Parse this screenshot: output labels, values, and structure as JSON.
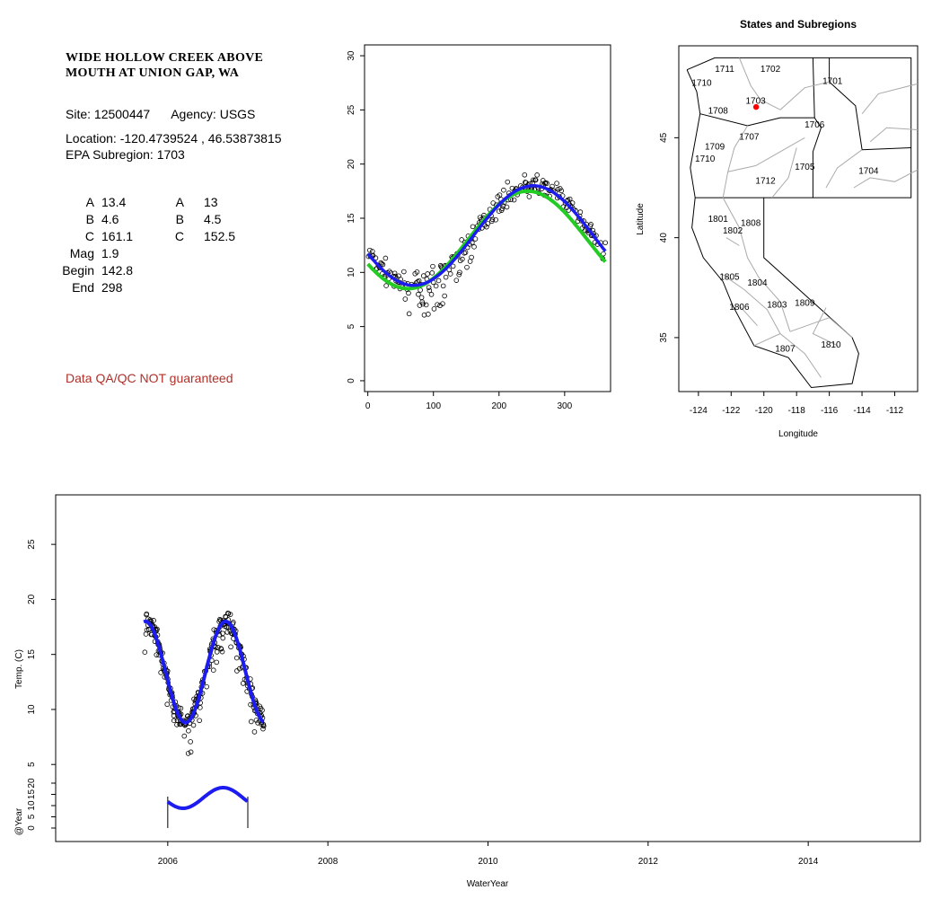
{
  "site": {
    "title_line1": "WIDE HOLLOW CREEK ABOVE",
    "title_line2": "MOUTH AT UNION GAP, WA",
    "site_label": "Site:",
    "site_id": "12500447",
    "agency_label": "Agency:",
    "agency": "USGS",
    "location_text": "Location: -120.4739524 , 46.53873815",
    "subregion_text": "EPA Subregion: 1703",
    "qa_note": "Data QA/QC NOT guaranteed"
  },
  "params": {
    "rows": [
      {
        "label": "A",
        "value": "13.4",
        "label2": "A",
        "value2": "13"
      },
      {
        "label": "B",
        "value": "4.6",
        "label2": "B",
        "value2": "4.5"
      },
      {
        "label": "C",
        "value": "161.1",
        "label2": "C",
        "value2": "152.5"
      },
      {
        "label": "Mag",
        "value": "1.9",
        "label2": "",
        "value2": ""
      },
      {
        "label": "Begin",
        "value": "142.8",
        "label2": "",
        "value2": ""
      },
      {
        "label": "End",
        "value": "298",
        "label2": "",
        "value2": ""
      }
    ]
  },
  "colors": {
    "fit_blue": "#1c1cf0",
    "fit_green": "#22cc22",
    "point": "#000000",
    "site_marker": "#ff0000",
    "qa_text": "#b0302a"
  },
  "chart_data": [
    {
      "type": "scatter",
      "id": "seasonal",
      "title": "",
      "xlabel": "",
      "ylabel": "",
      "xlim": [
        -5,
        370
      ],
      "ylim": [
        -1,
        31
      ],
      "x_ticks": [
        0,
        100,
        200,
        300
      ],
      "y_ticks": [
        0,
        5,
        10,
        15,
        20,
        25,
        30
      ],
      "series": [
        {
          "kind": "points",
          "sine": {
            "A": 13.4,
            "B": 4.6,
            "C": 161.1,
            "period": 365
          },
          "x_range": [
            0,
            362
          ]
        },
        {
          "kind": "line",
          "color": "green",
          "sine": {
            "A": 13,
            "B": 4.5,
            "C": 152.5,
            "period": 365
          },
          "x_range": [
            0,
            362
          ]
        },
        {
          "kind": "line",
          "color": "blue",
          "sine": {
            "A": 13.4,
            "B": 4.6,
            "C": 161.1,
            "period": 365
          },
          "x_range": [
            0,
            362
          ]
        }
      ]
    },
    {
      "type": "map",
      "id": "subregions",
      "title": "States and Subregions",
      "xlabel": "Longitude",
      "ylabel": "Latitude",
      "xlim": [
        -125.2,
        -110.6
      ],
      "ylim": [
        32.3,
        49.6
      ],
      "x_ticks": [
        -124,
        -122,
        -120,
        -118,
        -116,
        -114,
        -112
      ],
      "y_ticks": [
        35,
        40,
        45
      ],
      "site": {
        "lon": -120.4739524,
        "lat": 46.53873815
      },
      "region_labels": [
        {
          "text": "1711",
          "lon": -122.4,
          "lat": 48.3
        },
        {
          "text": "1702",
          "lon": -119.6,
          "lat": 48.3
        },
        {
          "text": "1701",
          "lon": -115.8,
          "lat": 47.7
        },
        {
          "text": "1710",
          "lon": -123.8,
          "lat": 47.6
        },
        {
          "text": "1703",
          "lon": -120.5,
          "lat": 46.7
        },
        {
          "text": "1708",
          "lon": -122.8,
          "lat": 46.2
        },
        {
          "text": "1706",
          "lon": -116.9,
          "lat": 45.5
        },
        {
          "text": "1707",
          "lon": -120.9,
          "lat": 44.9
        },
        {
          "text": "1709",
          "lon": -123.0,
          "lat": 44.4
        },
        {
          "text": "1710",
          "lon": -123.6,
          "lat": 43.8
        },
        {
          "text": "1705",
          "lon": -117.5,
          "lat": 43.4
        },
        {
          "text": "1704",
          "lon": -113.6,
          "lat": 43.2
        },
        {
          "text": "1712",
          "lon": -119.9,
          "lat": 42.7
        },
        {
          "text": "1801",
          "lon": -122.8,
          "lat": 40.8
        },
        {
          "text": "1808",
          "lon": -120.8,
          "lat": 40.6
        },
        {
          "text": "1802",
          "lon": -121.9,
          "lat": 40.2
        },
        {
          "text": "1805",
          "lon": -122.1,
          "lat": 37.9
        },
        {
          "text": "1804",
          "lon": -120.4,
          "lat": 37.6
        },
        {
          "text": "1806",
          "lon": -121.5,
          "lat": 36.4
        },
        {
          "text": "1803",
          "lon": -119.2,
          "lat": 36.5
        },
        {
          "text": "1809",
          "lon": -117.5,
          "lat": 36.6
        },
        {
          "text": "1807",
          "lon": -118.7,
          "lat": 34.3
        },
        {
          "text": "1810",
          "lon": -115.9,
          "lat": 34.5
        }
      ]
    },
    {
      "type": "scatter",
      "id": "timeseries",
      "title": "",
      "xlabel": "WaterYear",
      "ylabel": "Temp. (C)",
      "ylabel2": "@Year",
      "xlim": [
        2004.6,
        2015.4
      ],
      "ylim": [
        -2,
        29.5
      ],
      "x_ticks": [
        2006,
        2008,
        2010,
        2012,
        2014
      ],
      "y_ticks": [
        5,
        10,
        15,
        20,
        25
      ],
      "y2_ticks": [
        0,
        5,
        10,
        15,
        20
      ],
      "record_start": 2005.7,
      "record_end": 2007.2,
      "water_year_markers": [
        2006,
        2007
      ],
      "sine": {
        "A": 13.4,
        "B": 4.6,
        "C": 161.1,
        "period": 365
      }
    }
  ]
}
